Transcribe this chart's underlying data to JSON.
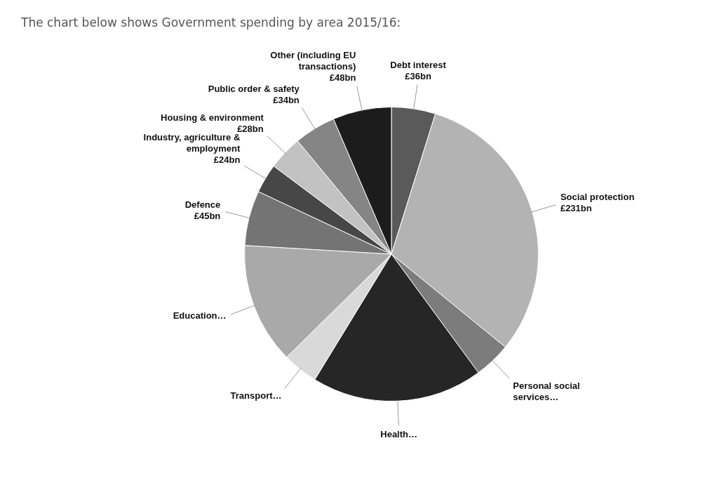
{
  "chart_data": {
    "type": "pie",
    "title": "The chart below shows Government spending by area 2015/16:",
    "categories": [
      "Debt interest",
      "Social protection",
      "Personal social services…",
      "Health…",
      "Transport…",
      "Education…",
      "Defence",
      "Industry, agriculture & employment",
      "Housing & environment",
      "Public order & safety",
      "Other (including EU transactions)"
    ],
    "values": [
      36,
      231,
      30,
      140,
      29,
      99,
      45,
      24,
      28,
      34,
      48
    ],
    "value_labels": [
      "£36bn",
      "£231bn",
      null,
      null,
      null,
      null,
      "£45bn",
      "£24bn",
      "£28bn",
      "£34bn",
      "£48bn"
    ],
    "colors": [
      "#5a5a5a",
      "#b3b3b3",
      "#7c7c7c",
      "#262626",
      "#d9d9d9",
      "#a9a9a9",
      "#747474",
      "#474747",
      "#c2c2c2",
      "#858585",
      "#1c1c1c"
    ],
    "legend": false
  }
}
